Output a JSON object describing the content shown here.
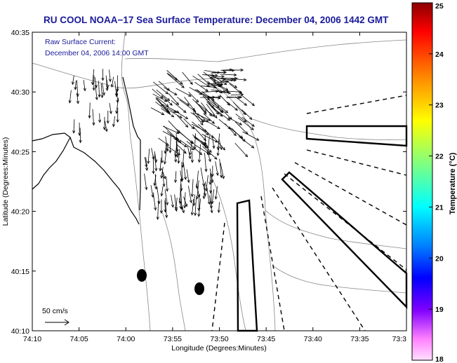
{
  "chart_data": {
    "type": "quiver-map",
    "title": "RU COOL  NOAA−17  Sea Surface Temperature:  December 04, 2006 1442 GMT",
    "subtitle_lines": [
      "Raw Surface Current:",
      "December 04, 2006 14:00 GMT"
    ],
    "xlabel": "Longitude (Degrees:Minutes)",
    "ylabel": "Latitude (Degrees:Minutes)",
    "x_ticks": [
      "74:10",
      "74:05",
      "74:00",
      "73:55",
      "73:50",
      "73:45",
      "73:40",
      "73:35",
      "73:3"
    ],
    "y_ticks": [
      "40:35",
      "40:30",
      "40:25",
      "40:20",
      "40:15",
      "40:10"
    ],
    "xlim_minutes_west": [
      70,
      30
    ],
    "ylim_minutes_north": [
      10,
      35
    ],
    "colorbar": {
      "label": "Temperature (°C)",
      "range": [
        18,
        25
      ],
      "ticks": [
        "25",
        "24",
        "23",
        "22",
        "21",
        "20",
        "19",
        "18"
      ],
      "colors_top_to_bottom": [
        "#8b0000",
        "#ff0000",
        "#ff8000",
        "#ffff00",
        "#80ff80",
        "#00ffff",
        "#0080ff",
        "#0000ff",
        "#8000ff",
        "#ff80ff",
        "#ffe0ff"
      ]
    },
    "scale_arrow_label": "50 cm/s",
    "colors": {
      "title": "#1a1a9a",
      "land_outline": "#000000",
      "contour": "#888888"
    }
  }
}
